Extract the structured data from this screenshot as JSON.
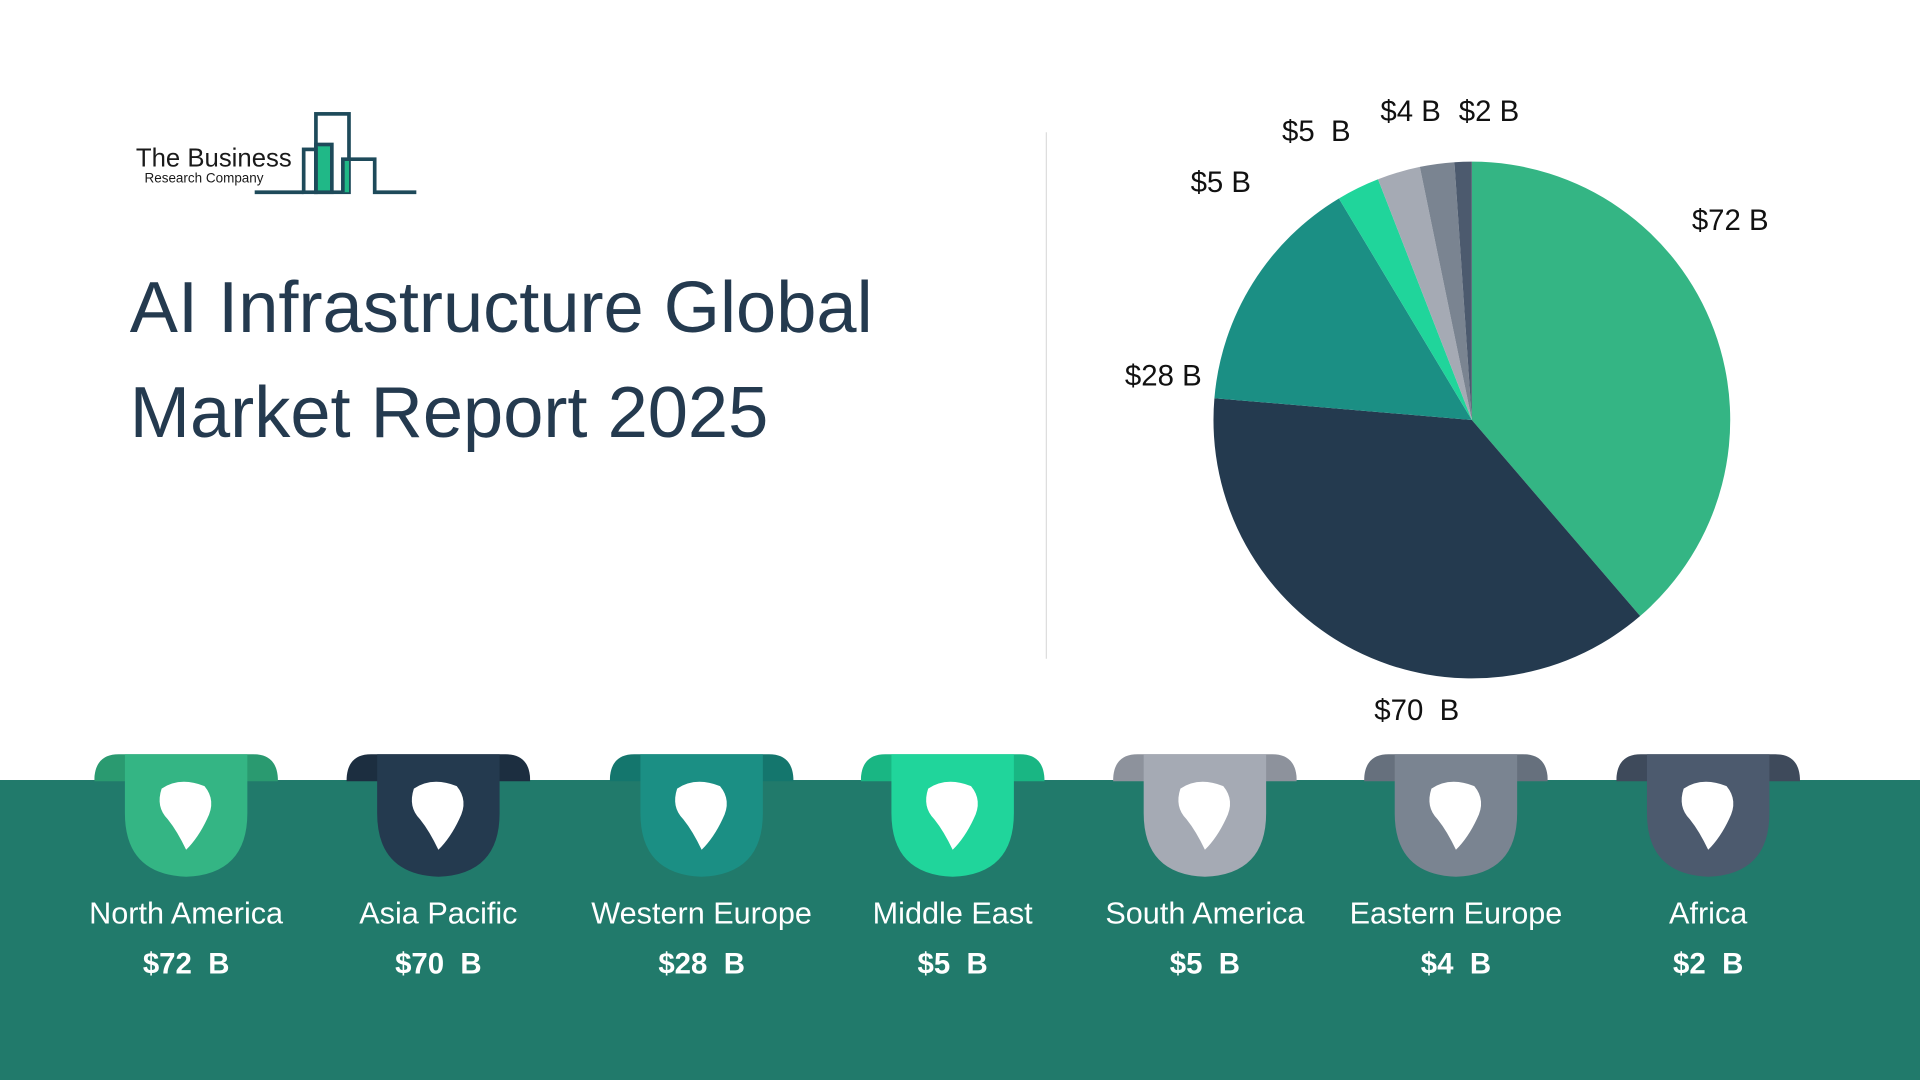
{
  "logo": {
    "line1": "The Business",
    "line2": "Research Company"
  },
  "title": "AI Infrastructure Global Market Report 2025",
  "title_lines": [
    "AI Infrastructure Global",
    "Market Report 2025"
  ],
  "chart_data": {
    "type": "pie",
    "unit": "$ B",
    "categories": [
      "North America",
      "Asia Pacific",
      "Western Europe",
      "Middle East",
      "South America",
      "Eastern Europe",
      "Africa"
    ],
    "values": [
      72,
      70,
      28,
      5,
      5,
      4,
      2
    ],
    "labels": [
      "$72 B",
      "$70  B",
      "$28 B",
      "$5 B",
      "$5  B",
      "$4 B",
      "$2 B"
    ],
    "colors": [
      "#34b584",
      "#243a4f",
      "#1b8f84",
      "#20d59b",
      "#a5aab4",
      "#7a8491",
      "#4c5a6e"
    ],
    "start": "top",
    "direction": "clockwise",
    "legend": "bottom"
  },
  "regions": [
    {
      "name": "North America",
      "value": "$72  B",
      "color": "#34b584",
      "dark": "#2a9a70"
    },
    {
      "name": "Asia Pacific",
      "value": "$70  B",
      "color": "#243a4f",
      "dark": "#1c2e40"
    },
    {
      "name": "Western Europe",
      "value": "$28  B",
      "color": "#1b8f84",
      "dark": "#14766d"
    },
    {
      "name": "Middle East",
      "value": "$5  B",
      "color": "#20d59b",
      "dark": "#19b683"
    },
    {
      "name": "South America",
      "value": "$5  B",
      "color": "#a5aab4",
      "dark": "#8d929c"
    },
    {
      "name": "Eastern Europe",
      "value": "$4  B",
      "color": "#7a8491",
      "dark": "#66707d"
    },
    {
      "name": "Africa",
      "value": "$2  B",
      "color": "#4c5a6e",
      "dark": "#3e4a5b"
    }
  ],
  "colors": {
    "band": "#217a6b",
    "title": "#243a4f"
  }
}
